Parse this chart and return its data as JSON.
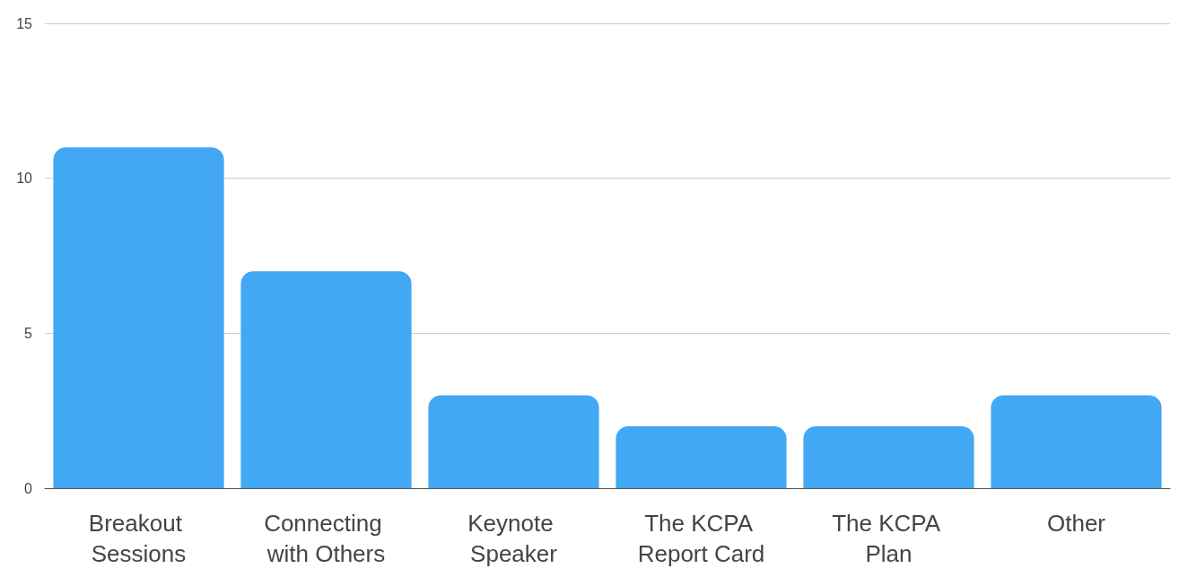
{
  "chart_data": {
    "type": "bar",
    "categories": [
      "Breakout Sessions",
      "Connecting with Others",
      "Keynote Speaker",
      "The KCPA Report Card",
      "The KCPA Plan",
      "Other"
    ],
    "values": [
      11,
      7,
      3,
      2,
      2,
      3
    ],
    "color": "#42a8f4",
    "ylim": [
      0,
      15
    ],
    "yticks": [
      0,
      5,
      10,
      15
    ],
    "grid": "y"
  }
}
